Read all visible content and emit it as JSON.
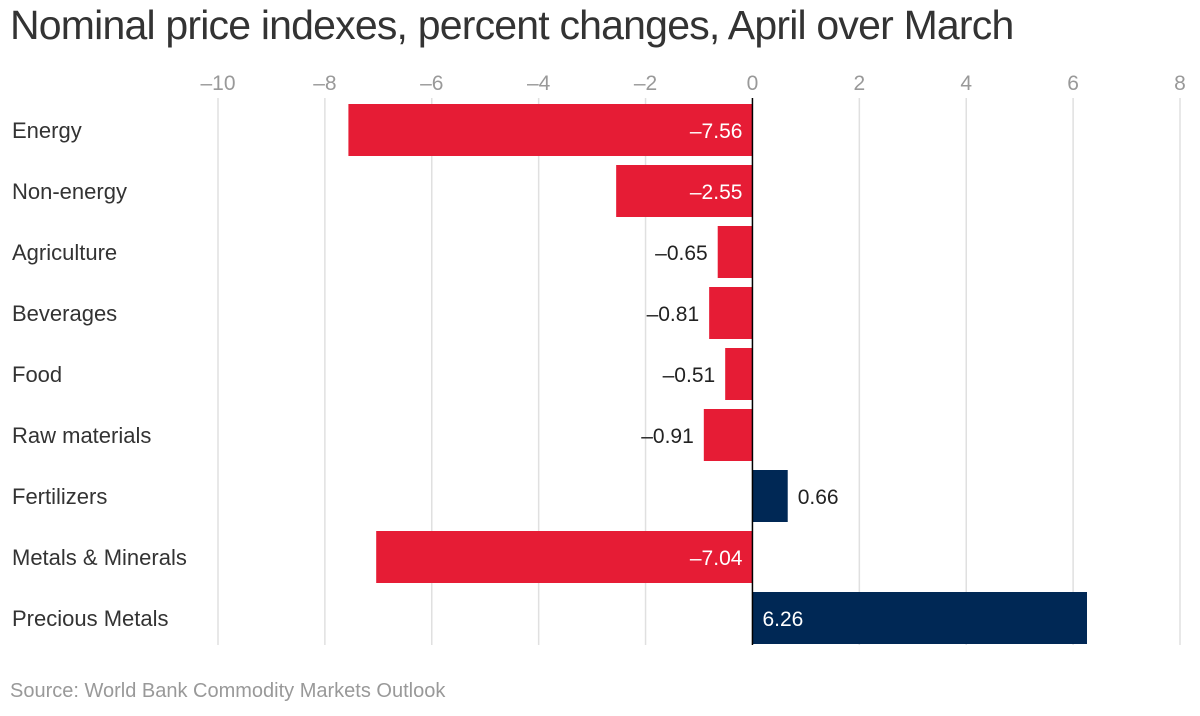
{
  "chart_data": {
    "type": "bar",
    "orientation": "horizontal",
    "title": "Nominal price indexes, percent changes, April over March",
    "source": "Source: World Bank Commodity Markets Outlook",
    "categories": [
      "Energy",
      "Non-energy",
      "Agriculture",
      "Beverages",
      "Food",
      "Raw materials",
      "Fertilizers",
      "Metals & Minerals",
      "Precious Metals"
    ],
    "values": [
      -7.56,
      -2.55,
      -0.65,
      -0.81,
      -0.51,
      -0.91,
      0.66,
      -7.04,
      6.26
    ],
    "value_labels": [
      "–7.56",
      "–2.55",
      "–0.65",
      "–0.81",
      "–0.51",
      "–0.91",
      "0.66",
      "–7.04",
      "6.26"
    ],
    "xlim": [
      -10,
      8
    ],
    "xticks": [
      -10,
      -8,
      -6,
      -4,
      -2,
      0,
      2,
      4,
      6,
      8
    ],
    "xtick_labels": [
      "–10",
      "–8",
      "–6",
      "–4",
      "–2",
      "0",
      "2",
      "4",
      "6",
      "8"
    ],
    "axis_position": "top",
    "grid": true,
    "legend": false,
    "colors": {
      "negative": "#e61c35",
      "positive": "#002855",
      "grid": "#e0e0e0",
      "zero_line": "#000000"
    }
  }
}
